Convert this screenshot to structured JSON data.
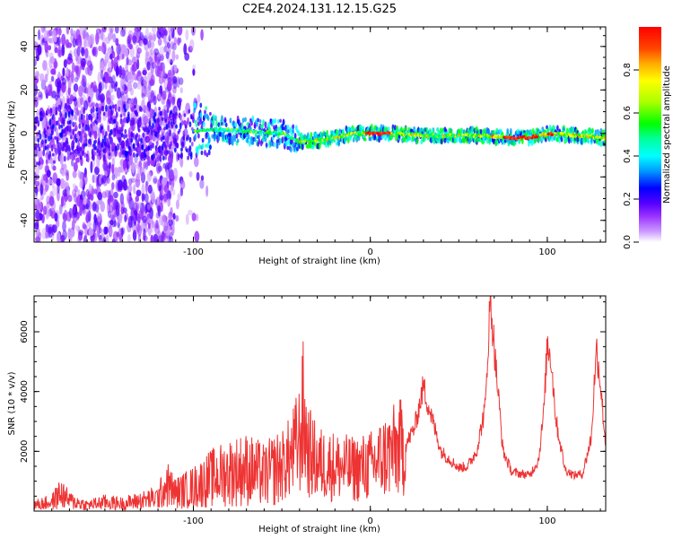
{
  "title": "C2E4.2024.131.12.15.G25",
  "chart_data": [
    {
      "type": "heatmap",
      "xlabel": "Height of straight line (km)",
      "ylabel": "Frequency (Hz)",
      "xlim": [
        -190,
        133
      ],
      "ylim": [
        -50,
        49
      ],
      "x_ticks": [
        -100,
        0,
        100
      ],
      "y_ticks": [
        -40,
        -20,
        0,
        20,
        40
      ],
      "colorbar": {
        "label": "Normalized spectral amplitude",
        "range": [
          0,
          1
        ],
        "ticks": [
          "0.0",
          "0.2",
          "0.4",
          "0.6",
          "0.8"
        ],
        "colors": [
          "#ffffff",
          "#cc99ff",
          "#9933ff",
          "#5500ff",
          "#0000ff",
          "#0099ff",
          "#00ffff",
          "#00ff99",
          "#00ff00",
          "#aaff00",
          "#ffff00",
          "#ffaa00",
          "#ff4400",
          "#ff0000"
        ]
      },
      "ridge_frequency_hz": [
        {
          "x": -190,
          "f": -2
        },
        {
          "x": -140,
          "f": 1
        },
        {
          "x": -110,
          "f": 0
        },
        {
          "x": -90,
          "f": 2
        },
        {
          "x": -70,
          "f": 1
        },
        {
          "x": -50,
          "f": 0
        },
        {
          "x": -40,
          "f": -4
        },
        {
          "x": -20,
          "f": -2
        },
        {
          "x": -10,
          "f": 0
        },
        {
          "x": 0,
          "f": 0
        },
        {
          "x": 10,
          "f": 0
        },
        {
          "x": 30,
          "f": -1
        },
        {
          "x": 60,
          "f": -1
        },
        {
          "x": 80,
          "f": -2
        },
        {
          "x": 90,
          "f": -2
        },
        {
          "x": 100,
          "f": 0
        },
        {
          "x": 133,
          "f": -2
        }
      ]
    },
    {
      "type": "line",
      "xlabel": "Height of straight line (km)",
      "ylabel": "SNR (10 * v/v)",
      "xlim": [
        -190,
        133
      ],
      "ylim": [
        0,
        7200
      ],
      "x_ticks": [
        -100,
        0,
        100
      ],
      "y_ticks": [
        2000,
        4000,
        6000
      ],
      "series": [
        {
          "color": "#ee3333",
          "x": [
            -190,
            -180,
            -175,
            -170,
            -160,
            -150,
            -140,
            -130,
            -120,
            -115,
            -110,
            -100,
            -90,
            -80,
            -70,
            -60,
            -50,
            -45,
            -40,
            -38,
            -35,
            -30,
            -20,
            -10,
            0,
            10,
            20,
            25,
            28,
            30,
            32,
            40,
            50,
            55,
            60,
            65,
            67,
            68,
            70,
            75,
            80,
            90,
            95,
            98,
            100,
            102,
            105,
            110,
            115,
            120,
            125,
            127,
            128,
            130,
            133
          ],
          "y": [
            200,
            300,
            600,
            350,
            200,
            300,
            250,
            350,
            450,
            900,
            600,
            800,
            1100,
            1300,
            1400,
            1200,
            1500,
            1800,
            2400,
            3200,
            2000,
            1600,
            1500,
            1400,
            1500,
            1900,
            2200,
            2800,
            3600,
            4200,
            3700,
            2000,
            1450,
            1500,
            2000,
            3500,
            6200,
            7000,
            5500,
            2000,
            1300,
            1200,
            1700,
            3300,
            5600,
            5200,
            3000,
            1400,
            1200,
            1250,
            2500,
            4800,
            5400,
            4300,
            2200
          ]
        }
      ]
    }
  ]
}
